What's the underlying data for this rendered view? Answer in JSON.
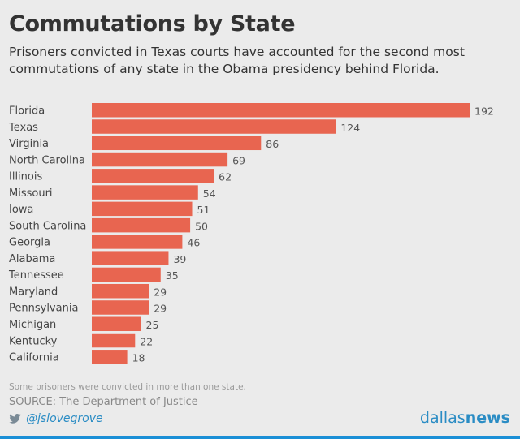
{
  "header": {
    "title": "Commutations by State",
    "subtitle": "Prisoners convicted in Texas courts have accounted for the second most commutations of any state in the Obama presidency behind Florida."
  },
  "chart_data": {
    "type": "bar",
    "orientation": "horizontal",
    "title": "Commutations by State",
    "xlabel": "",
    "ylabel": "",
    "xlim": [
      0,
      192
    ],
    "grid": false,
    "categories": [
      "Florida",
      "Texas",
      "Virginia",
      "North Carolina",
      "Illinois",
      "Missouri",
      "Iowa",
      "South Carolina",
      "Georgia",
      "Alabama",
      "Tennessee",
      "Maryland",
      "Pennsylvania",
      "Michigan",
      "Kentucky",
      "California"
    ],
    "values": [
      192,
      124,
      86,
      69,
      62,
      54,
      51,
      50,
      46,
      39,
      35,
      29,
      29,
      25,
      22,
      18
    ],
    "colors": {
      "bar": "#e86550"
    }
  },
  "footer": {
    "note": "Some prisoners were convicted in more than one state.",
    "source": "SOURCE: The Department of Justice",
    "twitter_icon": "twitter-icon",
    "handle": "@jslovegrove",
    "brand_light": "dallas",
    "brand_bold": "news"
  },
  "colors": {
    "background": "#ebebeb",
    "accent": "#2a8cc4",
    "rule": "#1b8fd6"
  }
}
